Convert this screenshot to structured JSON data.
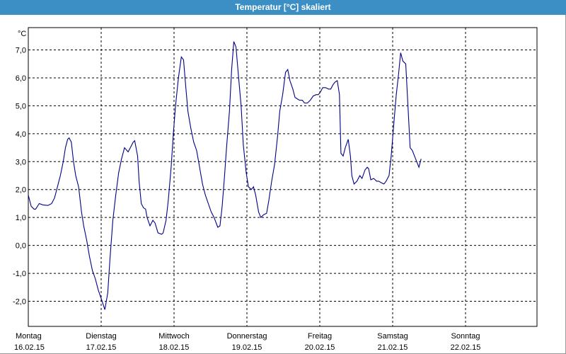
{
  "window": {
    "title": "Temperatur [°C] skaliert"
  },
  "chart_data": {
    "type": "line",
    "title": "Temperatur [°C] skaliert",
    "ylabel": "°C",
    "ylim": [
      -2.9,
      7.8
    ],
    "xlim": [
      0,
      7
    ],
    "grid": true,
    "yticks": [
      -2.0,
      -1.0,
      0.0,
      1.0,
      2.0,
      3.0,
      4.0,
      5.0,
      6.0,
      7.0
    ],
    "ytick_labels": [
      "-2,0",
      "-1,0",
      "0,0",
      "1,0",
      "2,0",
      "3,0",
      "4,0",
      "5,0",
      "6,0",
      "7,0"
    ],
    "x_ticks": [
      {
        "day": "Montag",
        "date": "16.02.15"
      },
      {
        "day": "Dienstag",
        "date": "17.02.15"
      },
      {
        "day": "Mittwoch",
        "date": "18.02.15"
      },
      {
        "day": "Donnerstag",
        "date": "19.02.15"
      },
      {
        "day": "Freitag",
        "date": "20.02.15"
      },
      {
        "day": "Samstag",
        "date": "21.02.15"
      },
      {
        "day": "Sonntag",
        "date": "22.02.15"
      }
    ],
    "series": [
      {
        "color": "#00008b",
        "points": [
          [
            0.0,
            1.8
          ],
          [
            0.04,
            1.4
          ],
          [
            0.08,
            1.3
          ],
          [
            0.1,
            1.3
          ],
          [
            0.15,
            1.5
          ],
          [
            0.2,
            1.45
          ],
          [
            0.27,
            1.43
          ],
          [
            0.32,
            1.5
          ],
          [
            0.36,
            1.7
          ],
          [
            0.4,
            2.1
          ],
          [
            0.44,
            2.5
          ],
          [
            0.48,
            3.0
          ],
          [
            0.51,
            3.5
          ],
          [
            0.54,
            3.8
          ],
          [
            0.56,
            3.85
          ],
          [
            0.59,
            3.7
          ],
          [
            0.62,
            3.0
          ],
          [
            0.65,
            2.5
          ],
          [
            0.69,
            2.1
          ],
          [
            0.73,
            1.2
          ],
          [
            0.76,
            0.7
          ],
          [
            0.8,
            0.2
          ],
          [
            0.84,
            -0.4
          ],
          [
            0.88,
            -0.9
          ],
          [
            0.92,
            -1.2
          ],
          [
            0.96,
            -1.6
          ],
          [
            1.0,
            -1.9
          ],
          [
            1.05,
            -2.3
          ],
          [
            1.09,
            -1.7
          ],
          [
            1.12,
            -0.5
          ],
          [
            1.16,
            0.9
          ],
          [
            1.2,
            1.8
          ],
          [
            1.24,
            2.6
          ],
          [
            1.28,
            3.1
          ],
          [
            1.32,
            3.5
          ],
          [
            1.37,
            3.35
          ],
          [
            1.4,
            3.5
          ],
          [
            1.44,
            3.7
          ],
          [
            1.46,
            3.75
          ],
          [
            1.5,
            3.2
          ],
          [
            1.52,
            2.3
          ],
          [
            1.55,
            1.5
          ],
          [
            1.58,
            1.35
          ],
          [
            1.61,
            1.3
          ],
          [
            1.63,
            1.0
          ],
          [
            1.67,
            0.7
          ],
          [
            1.71,
            0.9
          ],
          [
            1.74,
            0.8
          ],
          [
            1.78,
            0.45
          ],
          [
            1.83,
            0.4
          ],
          [
            1.85,
            0.45
          ],
          [
            1.89,
            0.9
          ],
          [
            1.92,
            1.6
          ],
          [
            1.96,
            2.8
          ],
          [
            1.99,
            4.0
          ],
          [
            2.02,
            5.0
          ],
          [
            2.06,
            6.0
          ],
          [
            2.1,
            6.75
          ],
          [
            2.13,
            6.65
          ],
          [
            2.16,
            5.7
          ],
          [
            2.19,
            4.8
          ],
          [
            2.23,
            4.2
          ],
          [
            2.27,
            3.7
          ],
          [
            2.31,
            3.4
          ],
          [
            2.35,
            2.8
          ],
          [
            2.39,
            2.2
          ],
          [
            2.43,
            1.8
          ],
          [
            2.47,
            1.5
          ],
          [
            2.51,
            1.2
          ],
          [
            2.55,
            1.0
          ],
          [
            2.6,
            0.65
          ],
          [
            2.63,
            0.7
          ],
          [
            2.66,
            1.4
          ],
          [
            2.69,
            2.4
          ],
          [
            2.72,
            3.5
          ],
          [
            2.76,
            4.8
          ],
          [
            2.79,
            6.3
          ],
          [
            2.82,
            7.3
          ],
          [
            2.85,
            7.1
          ],
          [
            2.88,
            6.2
          ],
          [
            2.92,
            5.0
          ],
          [
            2.95,
            3.6
          ],
          [
            2.99,
            2.6
          ],
          [
            3.02,
            2.1
          ],
          [
            3.06,
            2.0
          ],
          [
            3.09,
            2.1
          ],
          [
            3.12,
            1.8
          ],
          [
            3.16,
            1.2
          ],
          [
            3.19,
            1.0
          ],
          [
            3.23,
            1.1
          ],
          [
            3.27,
            1.15
          ],
          [
            3.3,
            1.6
          ],
          [
            3.34,
            2.3
          ],
          [
            3.38,
            2.9
          ],
          [
            3.42,
            3.9
          ],
          [
            3.45,
            4.8
          ],
          [
            3.49,
            5.4
          ],
          [
            3.53,
            6.2
          ],
          [
            3.56,
            6.3
          ],
          [
            3.59,
            5.9
          ],
          [
            3.63,
            5.6
          ],
          [
            3.66,
            5.3
          ],
          [
            3.72,
            5.2
          ],
          [
            3.76,
            5.2
          ],
          [
            3.79,
            5.1
          ],
          [
            3.83,
            5.1
          ],
          [
            3.87,
            5.2
          ],
          [
            3.91,
            5.35
          ],
          [
            3.95,
            5.4
          ],
          [
            3.98,
            5.4
          ],
          [
            4.01,
            5.5
          ],
          [
            4.04,
            5.65
          ],
          [
            4.08,
            5.65
          ],
          [
            4.12,
            5.6
          ],
          [
            4.15,
            5.6
          ],
          [
            4.18,
            5.75
          ],
          [
            4.21,
            5.85
          ],
          [
            4.24,
            5.9
          ],
          [
            4.27,
            5.4
          ],
          [
            4.29,
            3.3
          ],
          [
            4.32,
            3.2
          ],
          [
            4.35,
            3.5
          ],
          [
            4.39,
            3.8
          ],
          [
            4.42,
            3.2
          ],
          [
            4.44,
            2.5
          ],
          [
            4.47,
            2.2
          ],
          [
            4.51,
            2.3
          ],
          [
            4.55,
            2.5
          ],
          [
            4.58,
            2.4
          ],
          [
            4.62,
            2.7
          ],
          [
            4.65,
            2.8
          ],
          [
            4.67,
            2.75
          ],
          [
            4.7,
            2.35
          ],
          [
            4.74,
            2.4
          ],
          [
            4.78,
            2.3
          ],
          [
            4.81,
            2.3
          ],
          [
            4.84,
            2.25
          ],
          [
            4.88,
            2.2
          ],
          [
            4.91,
            2.3
          ],
          [
            4.95,
            2.5
          ],
          [
            4.98,
            3.2
          ],
          [
            5.02,
            4.5
          ],
          [
            5.05,
            5.4
          ],
          [
            5.08,
            6.1
          ],
          [
            5.11,
            6.9
          ],
          [
            5.14,
            6.6
          ],
          [
            5.18,
            6.5
          ],
          [
            5.21,
            5.0
          ],
          [
            5.24,
            3.5
          ],
          [
            5.27,
            3.4
          ],
          [
            5.3,
            3.2
          ],
          [
            5.33,
            3.0
          ],
          [
            5.36,
            2.8
          ],
          [
            5.39,
            3.1
          ]
        ]
      }
    ]
  }
}
